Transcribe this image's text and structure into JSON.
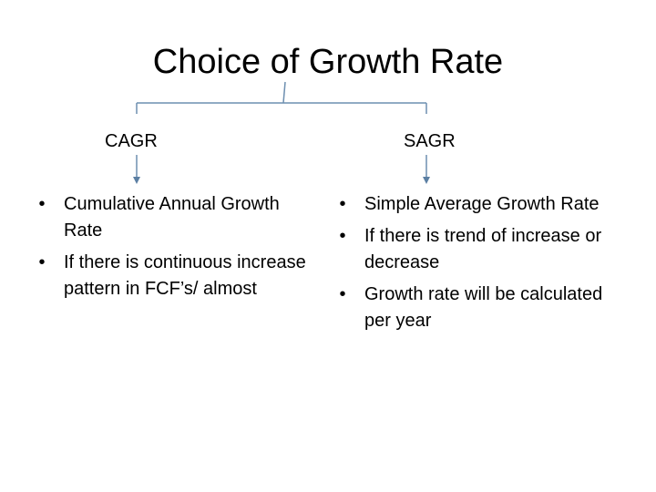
{
  "title": "Choice of Growth Rate",
  "colors": {
    "connector": "#6d8fb0",
    "arrow": "#5b7fa3",
    "text": "#000000"
  },
  "left": {
    "heading": "CAGR",
    "bullets": [
      "Cumulative Annual Growth Rate",
      "If there is continuous increase pattern in FCF’s/ almost"
    ]
  },
  "right": {
    "heading": "SAGR",
    "bullets": [
      "Simple Average Growth Rate",
      "If there is trend of increase or decrease",
      "Growth rate will be calculated per year"
    ]
  },
  "bullet_glyph": "•"
}
